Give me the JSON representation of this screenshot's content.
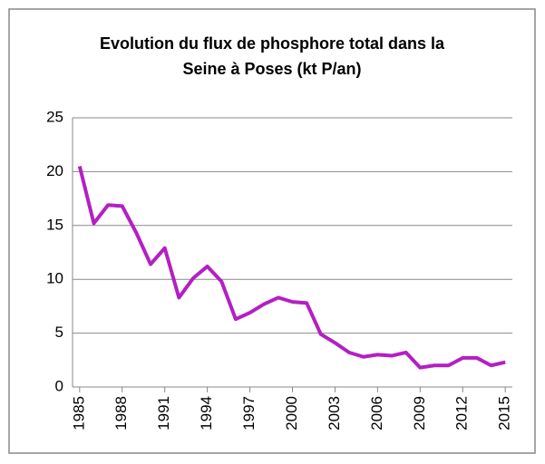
{
  "chart_data": {
    "type": "line",
    "title": "Evolution du flux de phosphore total dans la Seine à Poses (kt P/an)",
    "x": [
      1985,
      1986,
      1987,
      1988,
      1989,
      1990,
      1991,
      1992,
      1993,
      1994,
      1995,
      1996,
      1997,
      1998,
      1999,
      2000,
      2001,
      2002,
      2003,
      2004,
      2005,
      2006,
      2007,
      2008,
      2009,
      2010,
      2011,
      2012,
      2013,
      2014,
      2015
    ],
    "series": [
      {
        "name": "Phosphore total",
        "color": "#b41fc4",
        "values": [
          20.5,
          15.2,
          16.9,
          16.8,
          14.3,
          11.4,
          12.9,
          8.3,
          10.1,
          11.2,
          9.8,
          6.3,
          6.9,
          7.7,
          8.3,
          7.9,
          7.8,
          4.9,
          4.1,
          3.2,
          2.8,
          3.0,
          2.9,
          3.2,
          1.8,
          2.0,
          2.0,
          2.7,
          2.7,
          2.0,
          2.3
        ]
      }
    ],
    "xlim": [
      1984.5,
      2015.5
    ],
    "xticks": [
      1985,
      1988,
      1991,
      1994,
      1997,
      2000,
      2003,
      2006,
      2009,
      2012,
      2015
    ],
    "ylim": [
      0,
      25
    ],
    "yticks": [
      0,
      5,
      10,
      15,
      20,
      25
    ],
    "grid": true
  }
}
